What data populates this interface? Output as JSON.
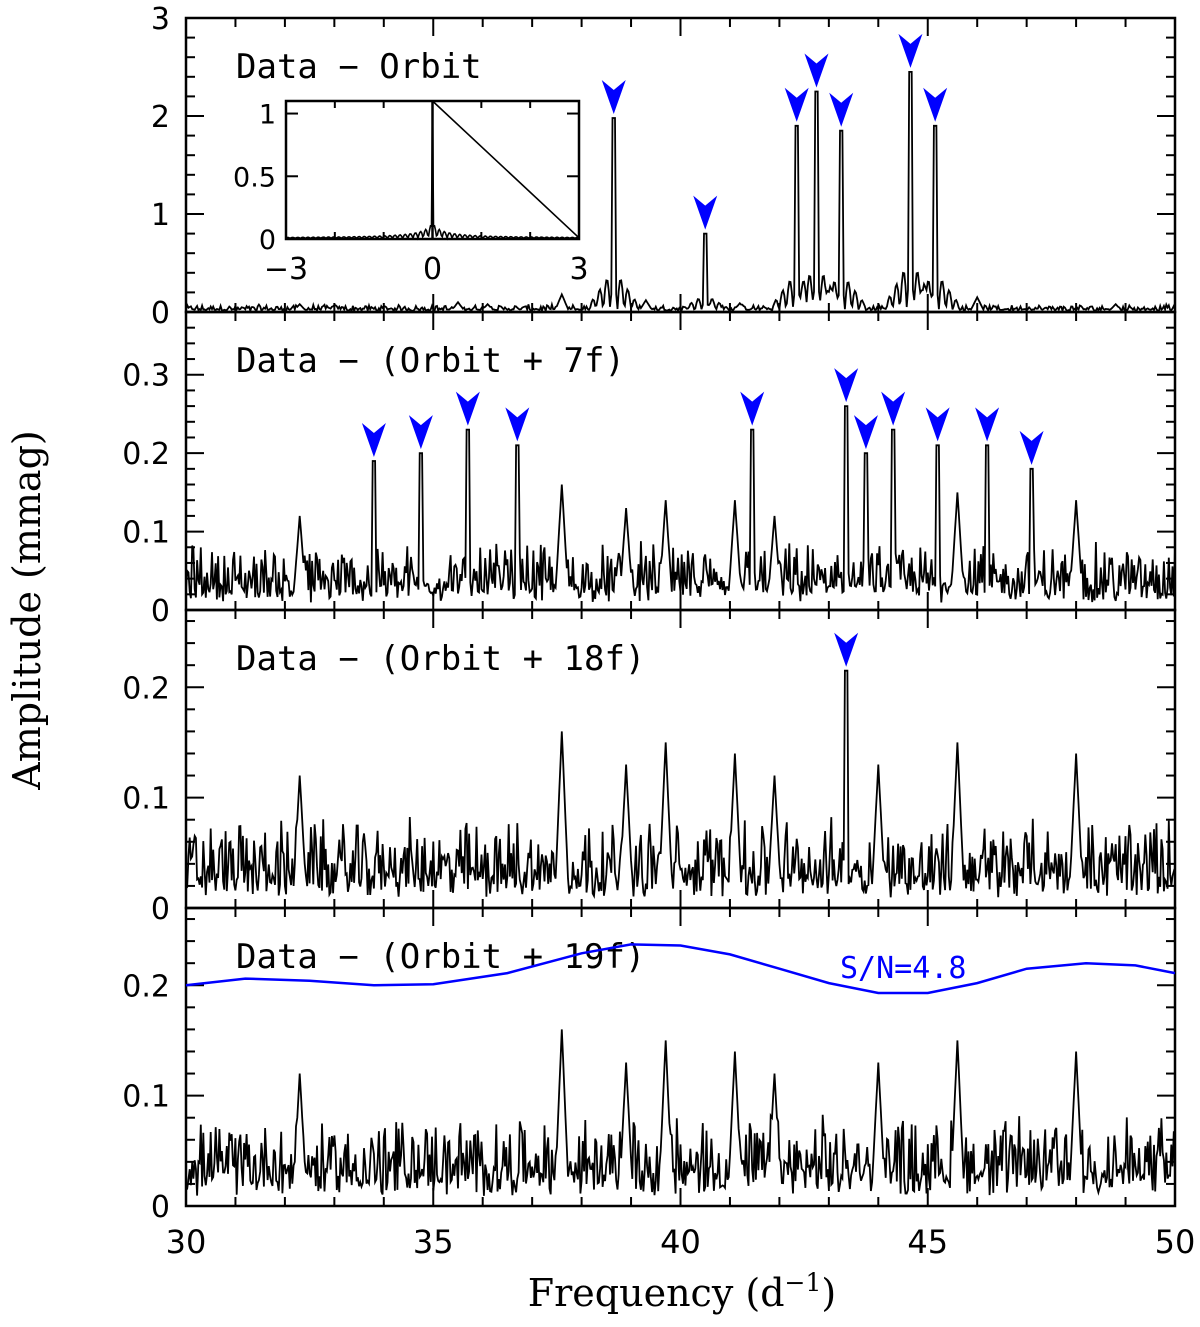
{
  "chart_data": {
    "type": "line",
    "xlabel_main": "Frequency (d",
    "xlabel_sup": "−1",
    "xlabel_close": ")",
    "ylabel": "Amplitude (mmag)",
    "xlim": [
      30,
      50
    ],
    "xticks": [
      30,
      35,
      40,
      45,
      50
    ],
    "line_color": "#000000",
    "marker_color": "#0000ff",
    "panels": [
      {
        "label": "Data − Orbit",
        "ylim": [
          0,
          3
        ],
        "yticks": [
          0,
          1,
          2,
          3
        ],
        "noise": {
          "base": 0.03,
          "amp": 0.05
        },
        "bumps": [
          [
            32.3,
            0.08
          ],
          [
            33,
            0.07
          ],
          [
            35.5,
            0.1
          ],
          [
            36.1,
            0.08
          ],
          [
            37.6,
            0.18
          ],
          [
            39.3,
            0.12
          ],
          [
            41.2,
            0.09
          ],
          [
            46.0,
            0.15
          ],
          [
            48.8,
            0.08
          ]
        ],
        "peaks": [
          [
            38.65,
            1.98
          ],
          [
            40.5,
            0.8
          ],
          [
            42.35,
            1.9
          ],
          [
            42.75,
            2.25
          ],
          [
            43.25,
            1.85
          ],
          [
            44.65,
            2.45
          ],
          [
            45.15,
            1.9
          ]
        ],
        "markers": [
          38.65,
          40.5,
          42.35,
          42.75,
          43.25,
          44.65,
          45.15
        ]
      },
      {
        "label": "Data − (Orbit + 7f)",
        "ylim": [
          0,
          0.38
        ],
        "yticks": [
          0,
          0.1,
          0.2,
          0.3
        ],
        "noise": {
          "base": 0.03,
          "amp": 0.06
        },
        "bumps": [
          [
            32.3,
            0.12
          ],
          [
            37.6,
            0.16
          ],
          [
            38.9,
            0.13
          ],
          [
            39.7,
            0.14
          ],
          [
            41.1,
            0.14
          ],
          [
            41.9,
            0.12
          ],
          [
            45.6,
            0.15
          ],
          [
            48.0,
            0.14
          ]
        ],
        "peaks": [
          [
            33.8,
            0.19
          ],
          [
            34.75,
            0.2
          ],
          [
            35.7,
            0.23
          ],
          [
            36.7,
            0.21
          ],
          [
            41.45,
            0.23
          ],
          [
            43.35,
            0.26
          ],
          [
            43.75,
            0.2
          ],
          [
            44.3,
            0.23
          ],
          [
            45.2,
            0.21
          ],
          [
            46.2,
            0.21
          ],
          [
            47.1,
            0.18
          ]
        ],
        "markers": [
          33.8,
          34.75,
          35.7,
          36.7,
          41.45,
          43.35,
          43.75,
          44.3,
          45.2,
          46.2,
          47.1
        ]
      },
      {
        "label": "Data − (Orbit + 18f)",
        "ylim": [
          0,
          0.27
        ],
        "yticks": [
          0,
          0.1,
          0.2
        ],
        "noise": {
          "base": 0.03,
          "amp": 0.055
        },
        "bumps": [
          [
            32.3,
            0.12
          ],
          [
            37.6,
            0.16
          ],
          [
            38.9,
            0.13
          ],
          [
            39.7,
            0.15
          ],
          [
            41.1,
            0.14
          ],
          [
            41.9,
            0.12
          ],
          [
            44.0,
            0.13
          ],
          [
            45.6,
            0.15
          ],
          [
            48.0,
            0.14
          ]
        ],
        "peaks": [
          [
            43.35,
            0.215
          ]
        ],
        "markers": [
          43.35
        ]
      },
      {
        "label": "Data − (Orbit + 19f)",
        "ylim": [
          0,
          0.27
        ],
        "yticks": [
          0,
          0.1,
          0.2
        ],
        "noise": {
          "base": 0.03,
          "amp": 0.055
        },
        "bumps": [
          [
            32.3,
            0.12
          ],
          [
            37.6,
            0.16
          ],
          [
            38.9,
            0.13
          ],
          [
            39.7,
            0.15
          ],
          [
            41.1,
            0.14
          ],
          [
            41.9,
            0.12
          ],
          [
            44.0,
            0.13
          ],
          [
            45.6,
            0.15
          ],
          [
            48.0,
            0.14
          ]
        ],
        "peaks": [],
        "markers": [],
        "sn_label": "S/N=4.8",
        "sn_x": [
          30,
          31.2,
          32.5,
          33.8,
          35.0,
          36.5,
          38.0,
          39.0,
          40.0,
          41.0,
          42.0,
          43.0,
          44.0,
          45.0,
          46.0,
          47.0,
          48.2,
          49.2,
          50.0
        ],
        "sn_y": [
          0.2,
          0.206,
          0.204,
          0.2,
          0.201,
          0.211,
          0.229,
          0.237,
          0.236,
          0.228,
          0.215,
          0.202,
          0.193,
          0.193,
          0.202,
          0.215,
          0.22,
          0.218,
          0.211
        ]
      }
    ],
    "inset": {
      "xlim": [
        -3,
        3
      ],
      "ylim": [
        0,
        1.1
      ],
      "xticks": [
        -3,
        0,
        3
      ],
      "xtick_labels": [
        "−3",
        "0",
        "3"
      ],
      "yticks": [
        0,
        0.5,
        1
      ],
      "ytick_labels": [
        "0",
        "0.5",
        "1"
      ],
      "peak_height": 1.1
    }
  }
}
